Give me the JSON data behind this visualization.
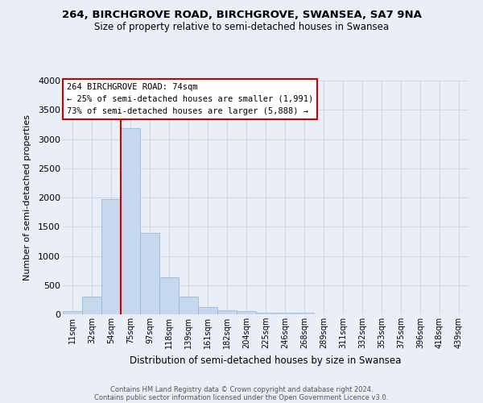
{
  "title_line1": "264, BIRCHGROVE ROAD, BIRCHGROVE, SWANSEA, SA7 9NA",
  "title_line2": "Size of property relative to semi-detached houses in Swansea",
  "xlabel": "Distribution of semi-detached houses by size in Swansea",
  "ylabel": "Number of semi-detached properties",
  "bar_labels": [
    "11sqm",
    "32sqm",
    "54sqm",
    "75sqm",
    "97sqm",
    "118sqm",
    "139sqm",
    "161sqm",
    "182sqm",
    "204sqm",
    "225sqm",
    "246sqm",
    "268sqm",
    "289sqm",
    "311sqm",
    "332sqm",
    "353sqm",
    "375sqm",
    "396sqm",
    "418sqm",
    "439sqm"
  ],
  "bar_values": [
    50,
    310,
    1970,
    3180,
    1400,
    640,
    300,
    130,
    70,
    50,
    30,
    30,
    30,
    0,
    0,
    0,
    0,
    0,
    0,
    0,
    0
  ],
  "bar_color": "#c5d8ed",
  "bar_edge_color": "#8ab4d4",
  "vline_color": "#cc0000",
  "annotation_title": "264 BIRCHGROVE ROAD: 74sqm",
  "annotation_line2": "← 25% of semi-detached houses are smaller (1,991)",
  "annotation_line3": "73% of semi-detached houses are larger (5,888) →",
  "annotation_box_facecolor": "#ffffff",
  "annotation_box_edgecolor": "#cc0000",
  "ylim": [
    0,
    4000
  ],
  "yticks": [
    0,
    500,
    1000,
    1500,
    2000,
    2500,
    3000,
    3500,
    4000
  ],
  "grid_color": "#d0d8e8",
  "bg_color": "#eaeff7",
  "footer_line1": "Contains HM Land Registry data © Crown copyright and database right 2024.",
  "footer_line2": "Contains public sector information licensed under the Open Government Licence v3.0."
}
